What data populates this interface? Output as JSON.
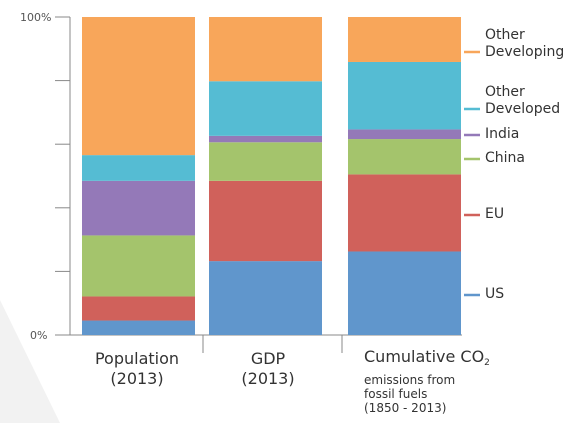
{
  "chart_data": {
    "type": "bar",
    "stacked": true,
    "normalized": true,
    "ylim": [
      0,
      100
    ],
    "y_ticks": [
      "100%",
      "0%"
    ],
    "categories": [
      {
        "lines": [
          "Population",
          "(2013)"
        ]
      },
      {
        "lines": [
          "GDP",
          "(2013)"
        ]
      },
      {
        "main": "Cumulative CO",
        "main_sub": "2",
        "sub_lines": [
          "emissions from",
          "fossil fuels",
          "(1850 - 2013)"
        ]
      }
    ],
    "series": [
      {
        "name": "US",
        "legend_lines": [
          "US"
        ],
        "color": "#6096cc",
        "values": [
          4.5,
          23,
          26
        ]
      },
      {
        "name": "EU",
        "legend_lines": [
          "EU"
        ],
        "color": "#d0615b",
        "values": [
          7.5,
          25,
          24
        ]
      },
      {
        "name": "China",
        "legend_lines": [
          "China"
        ],
        "color": "#a4c46c",
        "values": [
          19,
          12,
          11
        ]
      },
      {
        "name": "India",
        "legend_lines": [
          "India"
        ],
        "color": "#9479b8",
        "values": [
          17,
          2,
          3
        ]
      },
      {
        "name": "Other Developed",
        "legend_lines": [
          "Other",
          "Developed"
        ],
        "color": "#55bcd3",
        "values": [
          8,
          17,
          21
        ]
      },
      {
        "name": "Other Developing",
        "legend_lines": [
          "Other",
          "Developing"
        ],
        "color": "#f8a65a",
        "values": [
          43,
          20,
          14
        ]
      }
    ],
    "grid": false,
    "legend": "right"
  }
}
